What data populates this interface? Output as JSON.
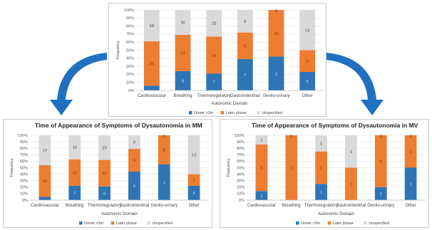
{
  "colors": {
    "onset": "#2e75b6",
    "later": "#ed7d31",
    "unspecified": "#d9d9d9",
    "arrow": "#1f70c1"
  },
  "chart_data": [
    {
      "type": "bar",
      "stacked": true,
      "percent": true,
      "title": "",
      "xlabel": "Autonomic Domain",
      "ylabel": "Frequency",
      "ylim": [
        0,
        100
      ],
      "yticks": [
        "0%",
        "10%",
        "20%",
        "30%",
        "40%",
        "50%",
        "60%",
        "70%",
        "80%",
        "90%",
        "100%"
      ],
      "legend_position": "bottom",
      "categories": [
        "Cardiovascular",
        "Breathing",
        "Thermoregulatory",
        "Gastrointestinal",
        "Genito-urinary",
        "Other"
      ],
      "series": [
        {
          "name": "Onset >3m",
          "values": [
            6,
            24,
            21,
            39,
            42,
            23
          ],
          "labels": [
            "",
            "8",
            "7",
            "7",
            "2",
            "5"
          ]
        },
        {
          "name": "Later phase",
          "values": [
            55,
            45,
            46,
            33,
            58,
            27
          ],
          "labels": [
            "25",
            "14",
            "14",
            "6",
            "10",
            "5"
          ]
        },
        {
          "name": "Unspecified",
          "values": [
            39,
            31,
            33,
            28,
            0,
            50
          ],
          "labels": [
            "18",
            "10",
            "23",
            "5",
            "0",
            "13"
          ]
        }
      ]
    },
    {
      "type": "bar",
      "stacked": true,
      "percent": true,
      "title": "Time of Appearance of Symptoms of Dysautonomia in MM",
      "xlabel": "Autonomic Domain",
      "ylabel": "Frequency",
      "ylim": [
        0,
        100
      ],
      "yticks": [
        "0%",
        "10%",
        "20%",
        "30%",
        "40%",
        "50%",
        "60%",
        "70%",
        "80%",
        "90%",
        "100%"
      ],
      "legend_position": "bottom",
      "categories": [
        "Cardiovascular",
        "Breathing",
        "Thermoregulatory",
        "Gastrointestinal",
        "Genito-urinary",
        "Other"
      ],
      "series": [
        {
          "name": "Onset >3m",
          "values": [
            5,
            22,
            21,
            44,
            55,
            22
          ],
          "labels": [
            "",
            "7",
            "6",
            "5",
            "1",
            "4"
          ]
        },
        {
          "name": "Later phase",
          "values": [
            49,
            41,
            41,
            35,
            45,
            18
          ],
          "labels": [
            "16",
            "12",
            "12",
            "4",
            "6",
            "2"
          ]
        },
        {
          "name": "Unspecified",
          "values": [
            46,
            37,
            38,
            21,
            0,
            60
          ],
          "labels": [
            "17",
            "10",
            "20",
            "3",
            "0",
            "13"
          ]
        }
      ]
    },
    {
      "type": "bar",
      "stacked": true,
      "percent": true,
      "title": "Time of Appearance of Symptoms of Dysautonomia in MV",
      "xlabel": "Autonomic Domain",
      "ylabel": "Frequency",
      "ylim": [
        0,
        100
      ],
      "yticks": [
        "0%",
        "10%",
        "20%",
        "30%",
        "40%",
        "50%",
        "60%",
        "70%",
        "80%",
        "90%",
        "100%"
      ],
      "legend_position": "bottom",
      "categories": [
        "Cardiovascular",
        "Breathing",
        "Thermoregulatory",
        "Gastrointestinal",
        "Genito-urinary",
        "Other"
      ],
      "series": [
        {
          "name": "Onset >3m",
          "values": [
            14,
            0,
            25,
            0,
            20,
            50
          ],
          "labels": [
            "1",
            "0",
            "1",
            "0",
            "1",
            "1"
          ]
        },
        {
          "name": "Later phase",
          "values": [
            72,
            100,
            50,
            50,
            80,
            50
          ],
          "labels": [
            "5",
            "2",
            "2",
            "1",
            "4",
            "1"
          ]
        },
        {
          "name": "Unspecified",
          "values": [
            14,
            0,
            25,
            50,
            0,
            0
          ],
          "labels": [
            "1",
            "0",
            "1",
            "1",
            "0",
            "0"
          ]
        }
      ]
    }
  ]
}
